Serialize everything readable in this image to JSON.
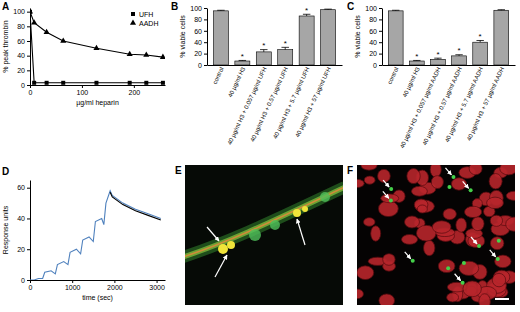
{
  "chart_data": [
    {
      "title": "A",
      "type": "line",
      "xlabel": "µg/ml heparin",
      "ylabel": "% peak thrombin",
      "x": [
        0,
        8,
        32,
        64,
        128,
        192,
        224,
        256
      ],
      "xlim": [
        0,
        260
      ],
      "xticks": [
        0,
        100,
        200
      ],
      "ylim": [
        0,
        105
      ],
      "yticks": [
        0,
        20,
        40,
        60,
        80,
        100
      ],
      "legend": "top-right",
      "series": [
        {
          "name": "UFH",
          "color": "#000000",
          "marker": "square",
          "values": [
            100,
            3,
            3,
            3,
            3,
            3,
            3,
            3
          ]
        },
        {
          "name": "AADH",
          "color": "#000000",
          "marker": "triangle",
          "values": [
            100,
            85,
            72,
            60,
            50,
            42,
            41,
            38
          ]
        }
      ]
    },
    {
      "title": "B",
      "type": "bar",
      "ylabel": "% viable cells",
      "categories": [
        "control",
        "40 µg/ml H3",
        "40 µg/ml H3 + 0.057 µg/ml UFH",
        "40 µg/ml H3 + 0.57 µg/ml UFH",
        "40 µg/ml H3 + 5.7 µg/ml UFH",
        "40 µg/ml H3 + 57 µg/ml UFH"
      ],
      "values": [
        95,
        7,
        23,
        27,
        86,
        97
      ],
      "errors": [
        1,
        1,
        4,
        4,
        3,
        1
      ],
      "significance": [
        null,
        "*",
        "*",
        "*",
        "*",
        null
      ],
      "color": "#a6a6a6",
      "ylim": [
        0,
        100
      ],
      "yticks": [
        0,
        20,
        40,
        60,
        80,
        100
      ]
    },
    {
      "title": "C",
      "type": "bar",
      "ylabel": "% viable cells",
      "categories": [
        "control",
        "40 µg/ml H3",
        "40 µg/ml H3 + 0.057 µg/ml AADH",
        "40 µg/ml H3 + 0.57 µg/ml AADH",
        "40 µg/ml H3 + 5.7 µg/ml AADH",
        "40 µg/ml H3 + 57 µg/ml AADH"
      ],
      "values": [
        95,
        7,
        10,
        16,
        40,
        96
      ],
      "errors": [
        1,
        1,
        2,
        2,
        3,
        1
      ],
      "significance": [
        null,
        "*",
        "*",
        "*",
        "*",
        null
      ],
      "color": "#a6a6a6",
      "ylim": [
        0,
        100
      ],
      "yticks": [
        0,
        20,
        40,
        60,
        80,
        100
      ]
    },
    {
      "title": "D",
      "type": "line",
      "xlabel": "time (sec)",
      "ylabel": "Response units",
      "x": [
        0,
        100,
        200,
        300,
        350,
        500,
        600,
        650,
        800,
        900,
        950,
        1100,
        1200,
        1250,
        1400,
        1500,
        1550,
        1700,
        1750,
        1800,
        1900,
        1950,
        2200,
        2500,
        2800,
        3100
      ],
      "xlim": [
        0,
        3200
      ],
      "xticks": [
        0,
        1000,
        2000,
        3000
      ],
      "ylim": [
        0,
        65
      ],
      "yticks": [
        0,
        20,
        40,
        60
      ],
      "series": [
        {
          "color": "#4f81bd",
          "values": [
            0,
            0,
            1,
            1,
            5,
            6,
            4,
            10,
            12,
            10,
            18,
            20,
            17,
            26,
            28,
            25,
            38,
            40,
            36,
            50,
            58,
            55,
            50,
            46,
            43,
            40
          ]
        },
        {
          "color": "#000000",
          "values": [
            null,
            null,
            null,
            null,
            null,
            null,
            null,
            null,
            null,
            null,
            null,
            null,
            null,
            null,
            null,
            null,
            null,
            null,
            null,
            null,
            57,
            54,
            49,
            45,
            42,
            39
          ]
        }
      ]
    }
  ],
  "images": [
    {
      "label": "E"
    },
    {
      "label": "F"
    }
  ]
}
